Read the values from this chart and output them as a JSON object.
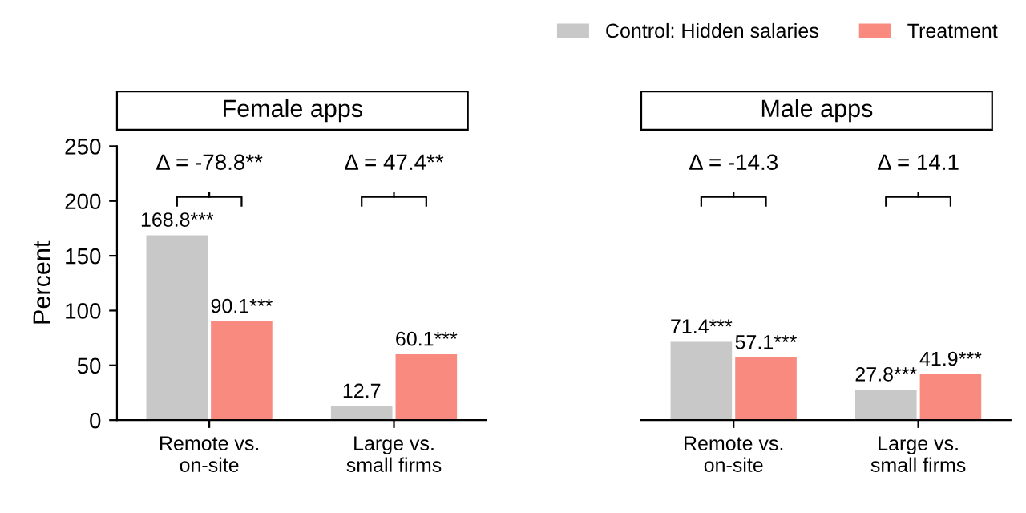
{
  "chart_data": [
    {
      "type": "bar",
      "title": "Female apps",
      "ylabel": "Percent",
      "categories": [
        "Remote vs.\non-site",
        "Large vs.\nsmall firms"
      ],
      "series": [
        {
          "name": "Control: Hidden salaries",
          "color": "#c8c8c8",
          "values": [
            168.8,
            12.7
          ],
          "value_labels": [
            "168.8***",
            "12.7"
          ]
        },
        {
          "name": "Treatment",
          "color": "#f88a80",
          "values": [
            90.1,
            60.1
          ],
          "value_labels": [
            "90.1***",
            "60.1***"
          ]
        }
      ],
      "ylim": [
        0,
        250
      ],
      "yticks": [
        0,
        50,
        100,
        150,
        200,
        250
      ],
      "legend": "top right",
      "grid": false,
      "annotations": [
        "Δ = -78.8**",
        "Δ = 47.4**"
      ]
    },
    {
      "type": "bar",
      "title": "Male apps",
      "categories": [
        "Remote vs.\non-site",
        "Large vs.\nsmall firms"
      ],
      "series": [
        {
          "color": "#c8c8c8",
          "values": [
            71.4,
            27.8
          ],
          "value_labels": [
            "71.4***",
            "27.8***"
          ]
        },
        {
          "color": "#f88a80",
          "values": [
            57.1,
            41.9
          ],
          "value_labels": [
            "57.1***",
            "41.9***"
          ]
        }
      ],
      "ylim": [
        0,
        250
      ],
      "tick_labels": "x",
      "grid": false,
      "annotations": [
        "Δ = -14.3",
        "Δ = 14.1"
      ]
    }
  ]
}
